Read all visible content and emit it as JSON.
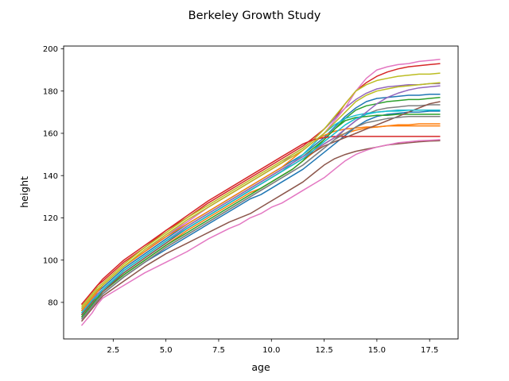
{
  "chart_data": {
    "type": "line",
    "title": "Berkeley Growth Study",
    "xlabel": "age",
    "ylabel": "height",
    "xlim": [
      0.15,
      18.85
    ],
    "ylim": [
      62.7,
      201.3
    ],
    "xticks": [
      2.5,
      5.0,
      7.5,
      10.0,
      12.5,
      15.0,
      17.5
    ],
    "xtick_labels": [
      "2.5",
      "5.0",
      "7.5",
      "10.0",
      "12.5",
      "15.0",
      "17.5"
    ],
    "yticks": [
      80,
      100,
      120,
      140,
      160,
      180,
      200
    ],
    "ytick_labels": [
      "80",
      "100",
      "120",
      "140",
      "160",
      "180",
      "200"
    ],
    "grid": false,
    "legend": "none",
    "colors": [
      "#1f77b4",
      "#ff7f0e",
      "#2ca02c",
      "#d62728",
      "#9467bd",
      "#8c564b",
      "#e377c2",
      "#7f7f7f",
      "#bcbd22",
      "#17becf"
    ],
    "x": [
      1,
      1.25,
      1.5,
      1.75,
      2,
      3,
      4,
      5,
      6,
      7,
      8,
      8.5,
      9,
      9.5,
      10,
      10.5,
      11,
      11.5,
      12,
      12.5,
      13,
      13.5,
      14,
      14.5,
      15,
      15.5,
      16,
      16.5,
      17,
      17.5,
      18
    ],
    "series": [
      {
        "values": [
          76,
          79,
          82,
          85,
          87,
          96,
          103,
          110,
          117,
          123,
          129,
          132,
          135,
          138,
          141,
          144,
          147,
          150,
          154,
          158,
          163,
          168,
          172,
          175,
          176.5,
          177,
          177.5,
          178,
          178,
          178.5,
          178.5
        ]
      },
      {
        "values": [
          74,
          77,
          80,
          83,
          85,
          93,
          100,
          107,
          114,
          120,
          126,
          129,
          132,
          134,
          137,
          140,
          143,
          147,
          151,
          155,
          158,
          160,
          161.5,
          162.5,
          163,
          163.5,
          164,
          164,
          164.5,
          164.5,
          164.5
        ]
      },
      {
        "values": [
          75,
          78,
          81,
          84,
          86,
          95,
          102,
          109,
          116,
          122,
          128,
          131,
          134,
          137,
          140,
          143,
          146,
          149,
          153,
          157,
          162,
          167,
          171,
          173,
          174,
          175,
          175.5,
          176,
          176,
          176.5,
          177
        ]
      },
      {
        "values": [
          79,
          82,
          85,
          88,
          90,
          99,
          106,
          114,
          120,
          127,
          133,
          136,
          139,
          142,
          145,
          148,
          151,
          154,
          158,
          162,
          167,
          174,
          180,
          184,
          187,
          189,
          190.5,
          191.5,
          192,
          192.5,
          193
        ]
      },
      {
        "values": [
          77,
          80,
          83,
          86,
          88,
          97,
          104,
          111,
          118,
          125,
          131,
          134,
          137,
          140,
          143,
          146,
          150,
          153,
          157,
          162,
          167,
          172,
          176,
          179,
          181,
          182,
          182.5,
          183,
          183,
          183.5,
          183.5
        ]
      },
      {
        "values": [
          71,
          74,
          77,
          80,
          83,
          90,
          97,
          103,
          108,
          113,
          118,
          120,
          122,
          125,
          128,
          131,
          134,
          137,
          141,
          145,
          148,
          150,
          151.5,
          152.5,
          153.5,
          154.5,
          155,
          155.5,
          156,
          156.3,
          156.5
        ]
      },
      {
        "values": [
          77,
          80,
          83,
          85,
          88,
          97,
          104,
          112,
          118,
          125,
          131,
          134,
          137,
          140,
          143,
          146,
          149,
          152,
          156,
          160,
          166,
          172,
          180,
          186,
          190,
          191.5,
          192.5,
          193,
          194,
          194.5,
          195
        ]
      },
      {
        "values": [
          73,
          76,
          79,
          82,
          84,
          92,
          99,
          106,
          112,
          118,
          124,
          127,
          130,
          133,
          136,
          139,
          142,
          145,
          149,
          153,
          157,
          162,
          166,
          169,
          171,
          172,
          172.5,
          173,
          173,
          173.5,
          173.5
        ]
      },
      {
        "values": [
          78,
          81,
          84,
          87,
          89,
          98,
          106,
          113,
          120,
          126,
          132,
          135,
          138,
          141,
          144,
          147,
          150,
          153,
          157,
          162,
          168,
          174,
          180,
          183,
          185,
          186,
          187,
          187.5,
          188,
          188,
          188.5
        ]
      },
      {
        "values": [
          74,
          77,
          80,
          83,
          86,
          94,
          101,
          108,
          115,
          121,
          127,
          130,
          133,
          136,
          139,
          142,
          146,
          150,
          155,
          160,
          164,
          167,
          168.5,
          169.5,
          170,
          170.5,
          170.5,
          171,
          171,
          171,
          171
        ]
      },
      {
        "values": [
          72,
          75,
          78,
          81,
          84,
          92,
          99,
          105,
          111,
          117,
          123,
          126,
          129,
          131,
          134,
          137,
          140,
          143,
          147,
          151,
          155,
          159,
          163,
          166,
          168,
          169,
          169.5,
          170,
          170,
          170.5,
          170.5
        ]
      },
      {
        "values": [
          76,
          79,
          82,
          85,
          88,
          97,
          104,
          111,
          117,
          123,
          129,
          132,
          135,
          138,
          141,
          144,
          148,
          152,
          156,
          159,
          161,
          162,
          162.5,
          163,
          163,
          163.5,
          163.5,
          163.5,
          163.5,
          163.5,
          163.5
        ]
      },
      {
        "values": [
          73,
          76,
          79,
          82,
          85,
          93,
          100,
          107,
          113,
          119,
          125,
          128,
          131,
          134,
          137,
          140,
          143,
          147,
          152,
          157,
          162,
          166,
          167.5,
          168,
          168.5,
          168.5,
          169,
          169,
          169,
          169,
          169
        ]
      },
      {
        "values": [
          79,
          82,
          85,
          88,
          91,
          100,
          107,
          114,
          121,
          128,
          134,
          137,
          140,
          143,
          146,
          149,
          152,
          155,
          157,
          158,
          158.5,
          158.5,
          158.5,
          158.5,
          158.5,
          158.5,
          158.5,
          158.5,
          158.5,
          158.5,
          158.5
        ]
      },
      {
        "values": [
          75,
          78,
          81,
          84,
          86,
          95,
          102,
          109,
          116,
          122,
          128,
          131,
          134,
          137,
          140,
          143,
          146,
          149,
          152,
          155,
          158,
          162,
          166,
          170,
          174,
          177,
          179,
          180.5,
          181.5,
          182,
          182.5
        ]
      },
      {
        "values": [
          74,
          77,
          80,
          83,
          85,
          94,
          101,
          108,
          115,
          121,
          127,
          130,
          133,
          136,
          139,
          142,
          145,
          148,
          151,
          154,
          156,
          158,
          160,
          162,
          164,
          166,
          168,
          170,
          172,
          174,
          175
        ]
      },
      {
        "values": [
          69,
          72,
          75,
          79,
          82,
          88,
          94,
          99,
          104,
          110,
          115,
          117,
          120,
          122,
          125,
          127,
          130,
          133,
          136,
          139,
          143,
          147,
          150,
          152,
          153.5,
          154.5,
          155.5,
          156,
          156.5,
          156.7,
          157
        ]
      },
      {
        "values": [
          72,
          75,
          78,
          81,
          84,
          92,
          99,
          106,
          112,
          118,
          124,
          127,
          130,
          133,
          136,
          139,
          142,
          145,
          149,
          153,
          157,
          160,
          163,
          165,
          166,
          167,
          167.5,
          168,
          168,
          168,
          168
        ]
      },
      {
        "values": [
          77,
          80,
          83,
          86,
          88,
          97,
          105,
          112,
          119,
          125,
          131,
          134,
          137,
          140,
          143,
          146,
          149,
          152,
          156,
          160,
          165,
          170,
          175,
          178,
          180,
          181,
          182,
          182.5,
          183,
          183.5,
          184
        ]
      },
      {
        "values": [
          75,
          78,
          81,
          83,
          86,
          95,
          102,
          109,
          115,
          121,
          127,
          130,
          133,
          136,
          139,
          142,
          145,
          148,
          152,
          156,
          160,
          164,
          167,
          169,
          170,
          170.5,
          171,
          171,
          171,
          171,
          171
        ]
      }
    ]
  }
}
